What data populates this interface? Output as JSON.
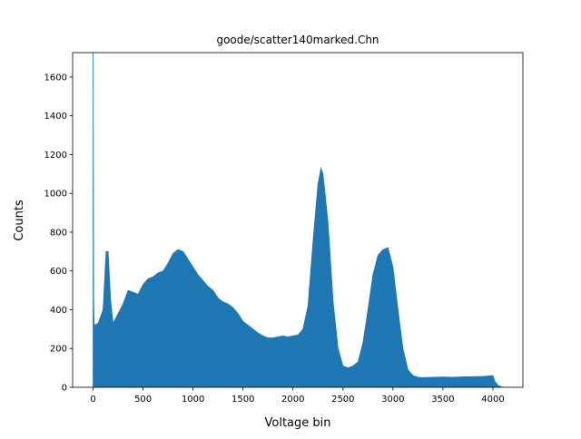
{
  "chart_data": {
    "type": "area",
    "title": "goode/scatter140marked.Chn",
    "x_label": "Voltage bin",
    "y_label": "Counts",
    "color": "#1f77b4",
    "x": [
      0,
      5,
      10,
      50,
      100,
      130,
      150,
      175,
      200,
      250,
      300,
      350,
      400,
      450,
      500,
      550,
      600,
      650,
      700,
      750,
      800,
      850,
      900,
      950,
      1000,
      1050,
      1100,
      1150,
      1200,
      1250,
      1300,
      1350,
      1400,
      1450,
      1500,
      1550,
      1600,
      1650,
      1700,
      1750,
      1800,
      1850,
      1900,
      1950,
      2000,
      2050,
      2100,
      2150,
      2200,
      2250,
      2280,
      2300,
      2350,
      2400,
      2450,
      2500,
      2550,
      2600,
      2650,
      2700,
      2750,
      2800,
      2850,
      2900,
      2950,
      3000,
      3050,
      3100,
      3150,
      3200,
      3250,
      3300,
      3400,
      3500,
      3600,
      3700,
      3800,
      3900,
      4000,
      4020,
      4050,
      4095
    ],
    "values": [
      1800,
      460,
      320,
      330,
      400,
      700,
      700,
      450,
      330,
      380,
      430,
      500,
      490,
      480,
      530,
      560,
      570,
      590,
      600,
      640,
      690,
      710,
      700,
      660,
      620,
      580,
      550,
      520,
      500,
      460,
      440,
      430,
      410,
      380,
      340,
      320,
      300,
      280,
      265,
      255,
      255,
      260,
      265,
      260,
      265,
      270,
      300,
      420,
      750,
      1050,
      1130,
      1100,
      850,
      450,
      200,
      110,
      100,
      110,
      130,
      230,
      400,
      580,
      680,
      710,
      720,
      620,
      400,
      200,
      90,
      60,
      52,
      50,
      52,
      53,
      52,
      54,
      55,
      56,
      60,
      30,
      10,
      0
    ],
    "xlim": [
      -205,
      4300
    ],
    "ylim": [
      0,
      1726
    ],
    "xticks": [
      0,
      500,
      1000,
      1500,
      2000,
      2500,
      3000,
      3500,
      4000
    ],
    "yticks": [
      0,
      200,
      400,
      600,
      800,
      1000,
      1200,
      1400,
      1600
    ]
  }
}
